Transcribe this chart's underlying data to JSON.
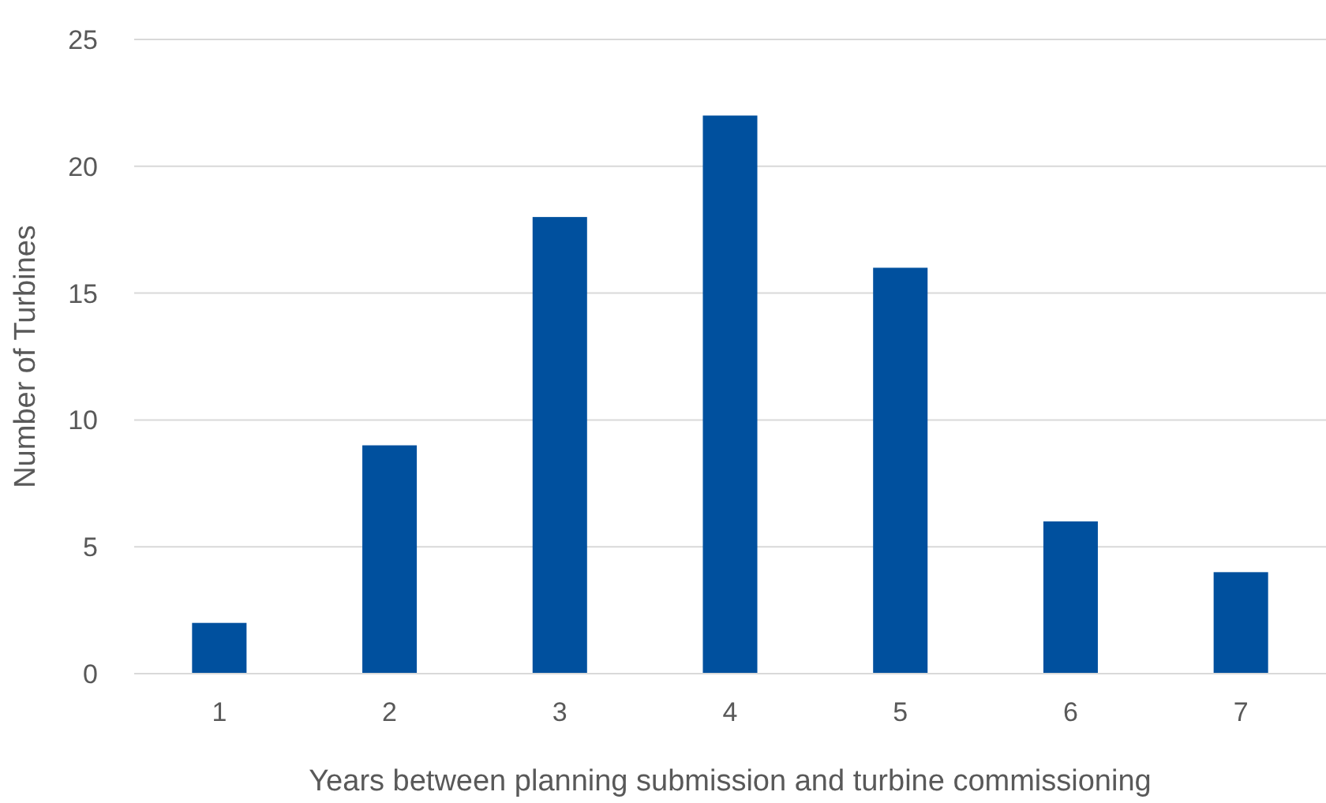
{
  "chart_data": {
    "type": "bar",
    "xlabel": "Years between planning submission and turbine commissioning",
    "ylabel": "Number of Turbines",
    "categories": [
      "1",
      "2",
      "3",
      "4",
      "5",
      "6",
      "7"
    ],
    "values": [
      2,
      9,
      18,
      22,
      16,
      6,
      4
    ],
    "color": "#00509e",
    "ylim": [
      0,
      25
    ],
    "yticks": [
      0,
      5,
      10,
      15,
      20,
      25
    ],
    "grid": "y"
  }
}
